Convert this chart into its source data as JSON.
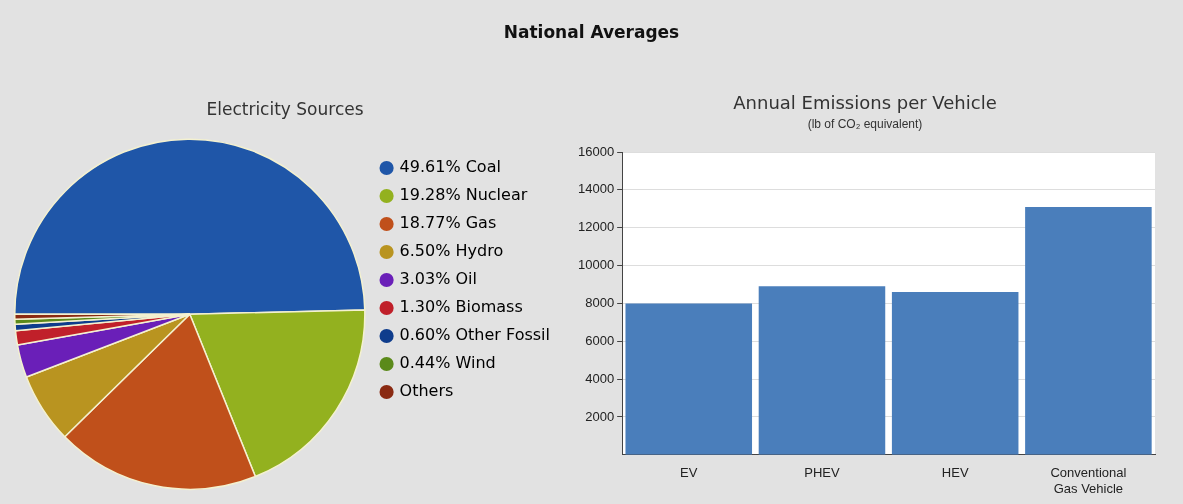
{
  "chart_data": [
    {
      "type": "other",
      "title": "National Averages"
    },
    {
      "type": "pie",
      "title": "Electricity Sources",
      "categories": [
        "Coal",
        "Nuclear",
        "Gas",
        "Hydro",
        "Oil",
        "Biomass",
        "Other Fossil",
        "Wind",
        "Others"
      ],
      "values": [
        49.61,
        19.28,
        18.77,
        6.5,
        3.03,
        1.3,
        0.6,
        0.44,
        0.47
      ],
      "value_labels": [
        "49.61%",
        "19.28%",
        "18.77%",
        "6.50%",
        "3.03%",
        "1.30%",
        "0.60%",
        "0.44%",
        null
      ],
      "colors": [
        "#1f56a8",
        "#93b11f",
        "#c0501b",
        "#b99420",
        "#6a1fb8",
        "#c0202a",
        "#0e3c8c",
        "#5b8a1a",
        "#8a2a12"
      ],
      "legend": "right"
    },
    {
      "type": "bar",
      "title": "Annual Emissions per Vehicle",
      "subtitle": "(lb of CO₂ equivalent)",
      "categories": [
        "EV",
        "PHEV",
        "HEV",
        "Conventional Gas Vehicle"
      ],
      "values": [
        8000,
        8900,
        8600,
        13100
      ],
      "color": "#4a7ebb",
      "ylim": [
        0,
        16000
      ],
      "yticks": [
        2000,
        4000,
        6000,
        8000,
        10000,
        12000,
        14000,
        16000
      ],
      "grid": "y",
      "legend": false
    }
  ]
}
